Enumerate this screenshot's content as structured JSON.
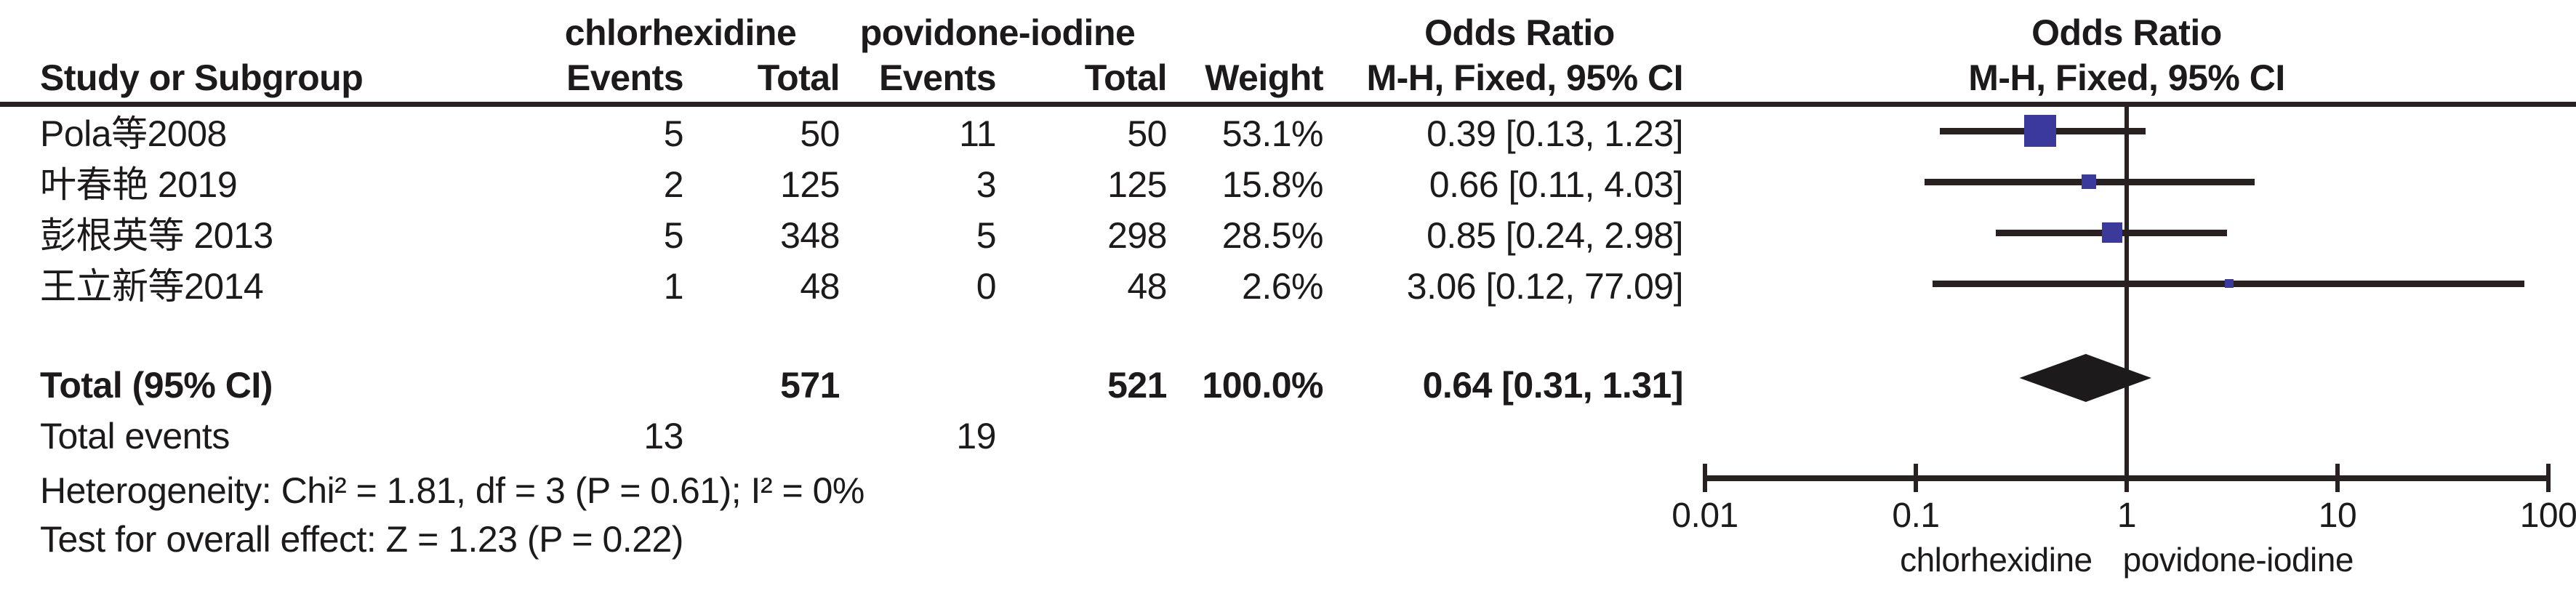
{
  "table": {
    "group_headers": [
      "chlorhexidine",
      "povidone-iodine",
      "Odds Ratio",
      "Odds Ratio"
    ],
    "col_headers": [
      "Study or Subgroup",
      "Events",
      "Total",
      "Events",
      "Total",
      "Weight",
      "M-H, Fixed, 95% CI",
      "M-H, Fixed, 95% CI"
    ],
    "rows": [
      {
        "study": "Pola等2008",
        "events1": "5",
        "total1": "50",
        "events2": "11",
        "total2": "50",
        "weight": "53.1%",
        "ci": "0.39 [0.13, 1.23]"
      },
      {
        "study": "叶春艳 2019",
        "events1": "2",
        "total1": "125",
        "events2": "3",
        "total2": "125",
        "weight": "15.8%",
        "ci": "0.66 [0.11, 4.03]"
      },
      {
        "study": "彭根英等 2013",
        "events1": "5",
        "total1": "348",
        "events2": "5",
        "total2": "298",
        "weight": "28.5%",
        "ci": "0.85 [0.24, 2.98]"
      },
      {
        "study": "王立新等2014",
        "events1": "1",
        "total1": "48",
        "events2": "0",
        "total2": "48",
        "weight": "2.6%",
        "ci": "3.06 [0.12, 77.09]"
      }
    ],
    "total_row": {
      "label": "Total (95% CI)",
      "total1": "571",
      "total2": "521",
      "weight": "100.0%",
      "ci": "0.64 [0.31, 1.31]"
    },
    "total_events": {
      "label": "Total events",
      "events1": "13",
      "events2": "19"
    },
    "heterogeneity": "Heterogeneity: Chi² = 1.81, df = 3 (P = 0.61); I² = 0%",
    "overall_effect": "Test for overall effect: Z = 1.23 (P = 0.22)"
  },
  "chart_data": {
    "type": "forest",
    "effect_measure": "Odds Ratio",
    "method": "M-H, Fixed, 95% CI",
    "x_scale": "log10",
    "x_range": [
      0.01,
      100
    ],
    "x_ticks": [
      "0.01",
      "0.1",
      "1",
      "10",
      "100"
    ],
    "x_tick_values": [
      0.01,
      0.1,
      1,
      10,
      100
    ],
    "axis_label_left": "chlorhexidine",
    "axis_label_right": "povidone-iodine",
    "studies": [
      {
        "name": "Pola等2008",
        "or": 0.39,
        "ci_low": 0.13,
        "ci_high": 1.23,
        "weight_pct": 53.1
      },
      {
        "name": "叶春艳 2019",
        "or": 0.66,
        "ci_low": 0.11,
        "ci_high": 4.03,
        "weight_pct": 15.8
      },
      {
        "name": "彭根英等 2013",
        "or": 0.85,
        "ci_low": 0.24,
        "ci_high": 2.98,
        "weight_pct": 28.5
      },
      {
        "name": "王立新等2014",
        "or": 3.06,
        "ci_low": 0.12,
        "ci_high": 77.09,
        "weight_pct": 2.6
      }
    ],
    "total": {
      "name": "Total (95% CI)",
      "or": 0.64,
      "ci_low": 0.31,
      "ci_high": 1.31,
      "weight_pct": 100.0
    },
    "colors": {
      "marker": "#3b3a9c",
      "line": "#272122",
      "diamond": "#1c1a1b",
      "text": "#1c1a1a"
    }
  }
}
